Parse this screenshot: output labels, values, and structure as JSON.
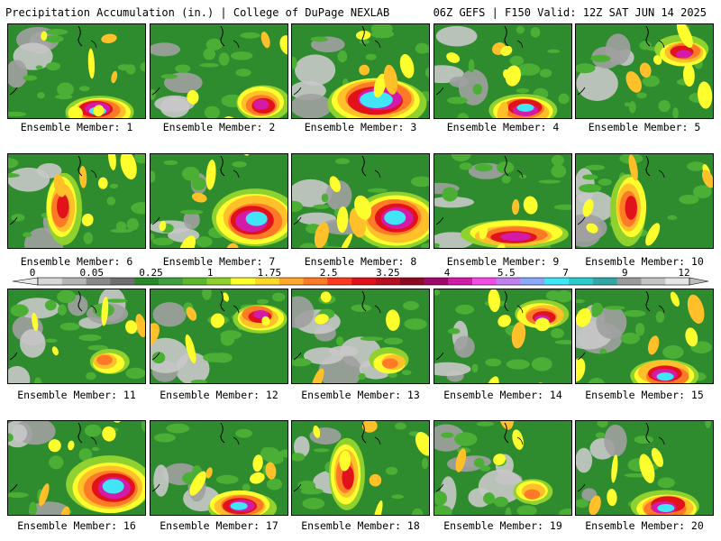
{
  "header": {
    "title": "Precipitation Accumulation (in.) | College of DuPage NEXLAB",
    "run_info": "06Z GEFS | F150 Valid: 12Z SAT JUN 14 2025"
  },
  "colorbar": {
    "labels": [
      "0",
      "0.05",
      "0.25",
      "1",
      "1.75",
      "2.5",
      "3.25",
      "4",
      "5.5",
      "7",
      "9",
      "12"
    ],
    "colors": [
      "#d7d7d7",
      "#b6b6b6",
      "#8a8a8a",
      "#6f6f6f",
      "#2a8a2a",
      "#3f9f3f",
      "#5cb82c",
      "#8fd22f",
      "#ffff2e",
      "#ffd92a",
      "#ffa82a",
      "#ff7a26",
      "#ff3a1e",
      "#e1121a",
      "#b5101e",
      "#8d0a22",
      "#a00a6a",
      "#d41aa8",
      "#f24ce6",
      "#c080f0",
      "#8aa8f8",
      "#40e6f6",
      "#2ccbcb",
      "#30a8a8",
      "#9a9a9a",
      "#c4c4c4",
      "#e6e6e6"
    ]
  },
  "members": [
    {
      "label": "Ensemble Member: 1",
      "pattern": "s-heavy"
    },
    {
      "label": "Ensemble Member: 2",
      "pattern": "se-blob"
    },
    {
      "label": "Ensemble Member: 3",
      "pattern": "wet"
    },
    {
      "label": "Ensemble Member: 4",
      "pattern": "s-heavy"
    },
    {
      "label": "Ensemble Member: 5",
      "pattern": "ne-blob"
    },
    {
      "label": "Ensemble Member: 6",
      "pattern": "streaks"
    },
    {
      "label": "Ensemble Member: 7",
      "pattern": "se-band"
    },
    {
      "label": "Ensemble Member: 8",
      "pattern": "se-band"
    },
    {
      "label": "Ensemble Member: 9",
      "pattern": "s-band"
    },
    {
      "label": "Ensemble Member: 10",
      "pattern": "streaks"
    },
    {
      "label": "Ensemble Member: 11",
      "pattern": "dry"
    },
    {
      "label": "Ensemble Member: 12",
      "pattern": "ne-blob"
    },
    {
      "label": "Ensemble Member: 13",
      "pattern": "dry"
    },
    {
      "label": "Ensemble Member: 14",
      "pattern": "ne-blob"
    },
    {
      "label": "Ensemble Member: 15",
      "pattern": "s-heavy"
    },
    {
      "label": "Ensemble Member: 16",
      "pattern": "se-band"
    },
    {
      "label": "Ensemble Member: 17",
      "pattern": "s-heavy"
    },
    {
      "label": "Ensemble Member: 18",
      "pattern": "streaks"
    },
    {
      "label": "Ensemble Member: 19",
      "pattern": "dry"
    },
    {
      "label": "Ensemble Member: 20",
      "pattern": "s-heavy"
    }
  ]
}
